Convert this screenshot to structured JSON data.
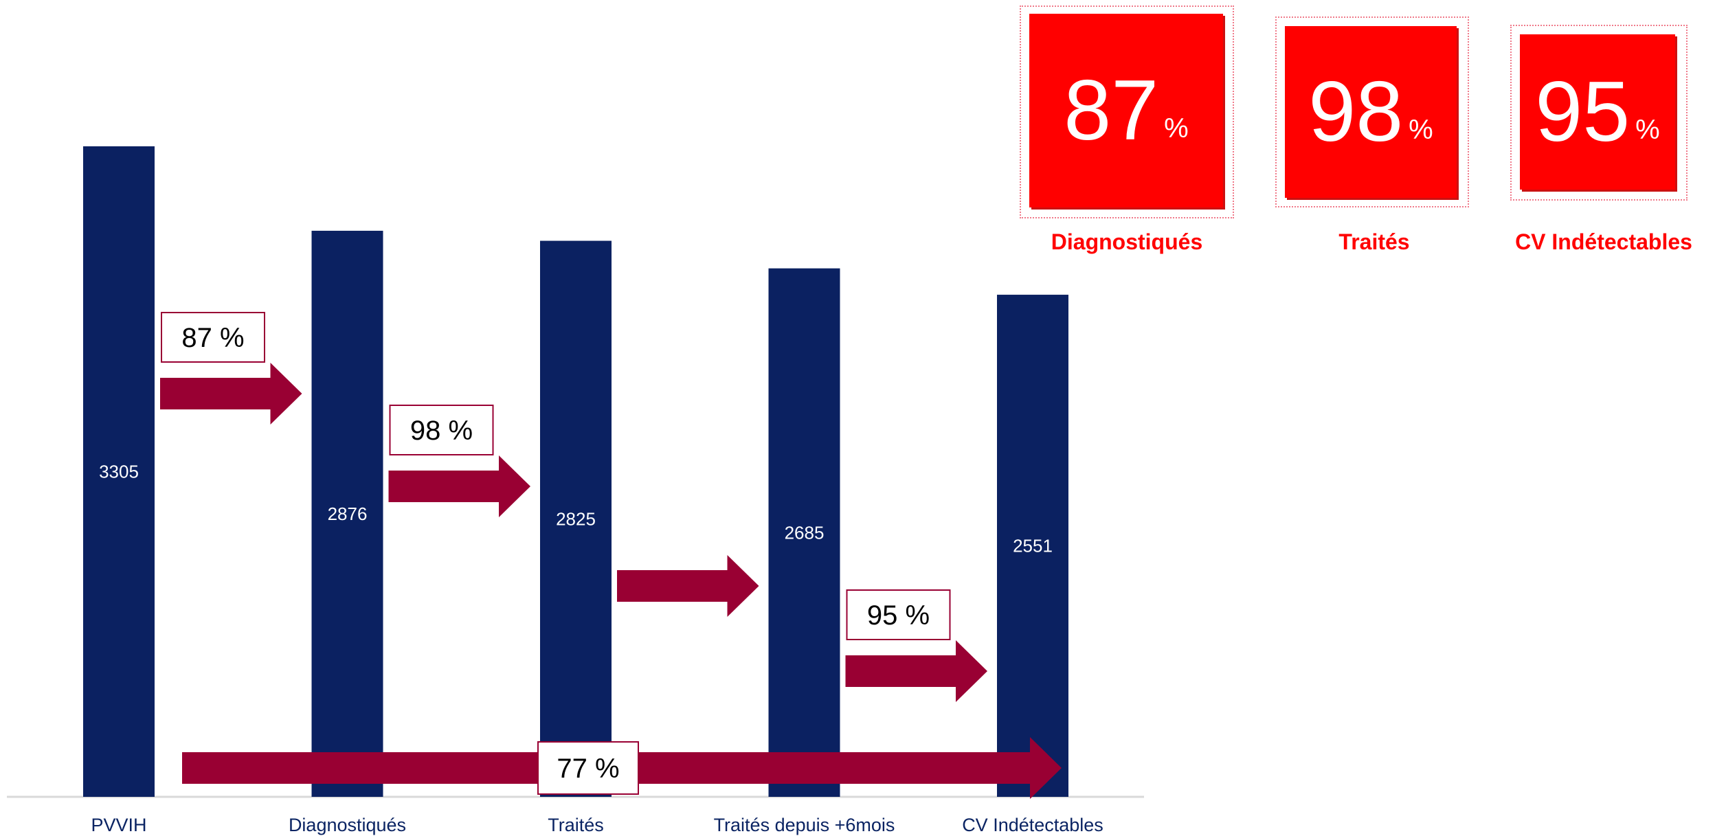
{
  "chart_data": {
    "type": "bar",
    "categories": [
      "PVVIH",
      "Diagnostiqués",
      "Traités",
      "Traités depuis +6mois",
      "CV Indétectables"
    ],
    "values": [
      3305,
      2876,
      2825,
      2685,
      2551
    ],
    "title": "",
    "xlabel": "",
    "ylabel": "",
    "ylim": [
      0,
      3305
    ],
    "bar_color": "#0b2161",
    "arrow_color": "#990033",
    "grid": false,
    "transitions": [
      {
        "from": "PVVIH",
        "to": "Diagnostiqués",
        "label": "87 %"
      },
      {
        "from": "Diagnostiqués",
        "to": "Traités",
        "label": "98 %"
      },
      {
        "from": "Traités",
        "to": "Traités depuis +6mois",
        "label": ""
      },
      {
        "from": "Traités depuis +6mois",
        "to": "CV Indétectables",
        "label": "95 %"
      }
    ],
    "overall": {
      "from": "PVVIH",
      "to": "CV Indétectables",
      "label": "77 %"
    }
  },
  "kpis": [
    {
      "number": "87",
      "unit": "%",
      "caption": "Diagnostiqués"
    },
    {
      "number": "98",
      "unit": "%",
      "caption": "Traités"
    },
    {
      "number": "95",
      "unit": "%",
      "caption": "CV Indétectables"
    }
  ],
  "colors": {
    "kpi_red": "#ff0000",
    "axis_line": "#d9d9d9"
  }
}
